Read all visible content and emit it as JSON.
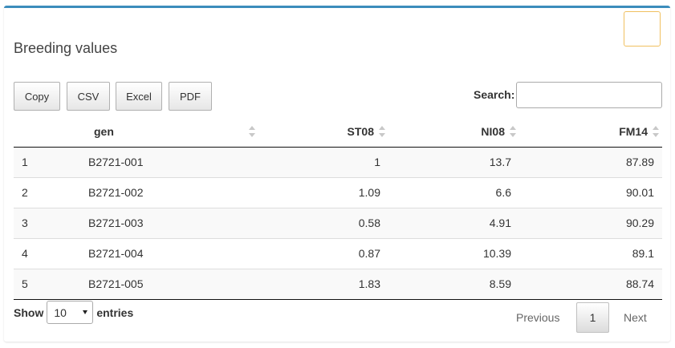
{
  "box": {
    "title": "Breeding values"
  },
  "buttons": [
    "Copy",
    "CSV",
    "Excel",
    "PDF"
  ],
  "search": {
    "label": "Search:",
    "value": ""
  },
  "table": {
    "columns": [
      "",
      "gen",
      "ST08",
      "NI08",
      "FM14"
    ],
    "rows": [
      [
        "1",
        "B2721-001",
        "1",
        "13.7",
        "87.89"
      ],
      [
        "2",
        "B2721-002",
        "1.09",
        "6.6",
        "90.01"
      ],
      [
        "3",
        "B2721-003",
        "0.58",
        "4.91",
        "90.29"
      ],
      [
        "4",
        "B2721-004",
        "0.87",
        "10.39",
        "89.1"
      ],
      [
        "5",
        "B2721-005",
        "1.83",
        "8.59",
        "88.74"
      ]
    ]
  },
  "length": {
    "show_label": "Show",
    "selected": "10",
    "entries_label": "entries"
  },
  "pagination": {
    "previous": "Previous",
    "current_page": "1",
    "next": "Next"
  },
  "colors": {
    "box_top_border": "#3c8dbc",
    "tool_border": "#f0c060"
  }
}
